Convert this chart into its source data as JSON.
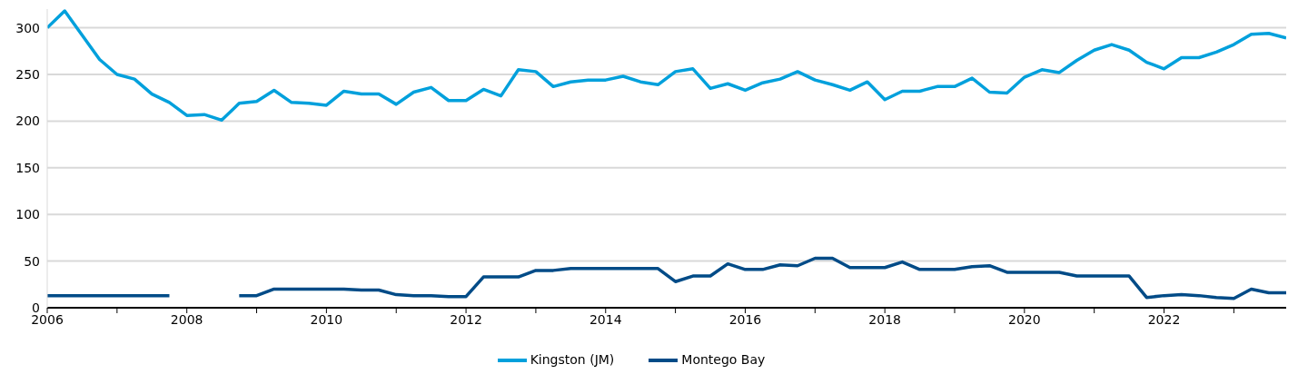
{
  "chart_data": {
    "type": "line",
    "x": [
      2006,
      2006.25,
      2006.5,
      2006.75,
      2007,
      2007.25,
      2007.5,
      2007.75,
      2008,
      2008.25,
      2008.5,
      2008.75,
      2009,
      2009.25,
      2009.5,
      2009.75,
      2010,
      2010.25,
      2010.5,
      2010.75,
      2011,
      2011.25,
      2011.5,
      2011.75,
      2012,
      2012.25,
      2012.5,
      2012.75,
      2013,
      2013.25,
      2013.5,
      2013.75,
      2014,
      2014.25,
      2014.5,
      2014.75,
      2015,
      2015.25,
      2015.5,
      2015.75,
      2016,
      2016.25,
      2016.5,
      2016.75,
      2017,
      2017.25,
      2017.5,
      2017.75,
      2018,
      2018.25,
      2018.5,
      2018.75,
      2019,
      2019.25,
      2019.5,
      2019.75,
      2020,
      2020.25,
      2020.5,
      2020.75,
      2021,
      2021.25,
      2021.5,
      2021.75,
      2022,
      2022.25,
      2022.5,
      2022.75,
      2023,
      2023.25,
      2023.5,
      2023.75
    ],
    "series": [
      {
        "name": "Kingston (JM)",
        "color": "#00a0dc",
        "values": [
          300,
          318,
          292,
          266,
          250,
          245,
          229,
          220,
          206,
          207,
          201,
          219,
          221,
          233,
          220,
          219,
          217,
          232,
          229,
          229,
          218,
          231,
          236,
          222,
          222,
          234,
          227,
          255,
          253,
          237,
          242,
          244,
          244,
          248,
          242,
          239,
          253,
          256,
          235,
          240,
          233,
          241,
          245,
          253,
          244,
          239,
          233,
          242,
          223,
          232,
          232,
          237,
          237,
          246,
          231,
          230,
          247,
          255,
          252,
          265,
          276,
          282,
          276,
          263,
          256,
          268,
          268,
          274,
          282,
          293,
          294,
          289
        ]
      },
      {
        "name": "Montego Bay",
        "color": "#004b87",
        "values": [
          13,
          13,
          13,
          13,
          13,
          13,
          13,
          13,
          null,
          null,
          null,
          13,
          13,
          20,
          20,
          20,
          20,
          20,
          19,
          19,
          14,
          13,
          13,
          12,
          12,
          33,
          33,
          33,
          40,
          40,
          42,
          42,
          42,
          42,
          42,
          42,
          28,
          34,
          34,
          47,
          41,
          41,
          46,
          45,
          53,
          53,
          43,
          43,
          43,
          49,
          41,
          41,
          41,
          44,
          45,
          38,
          38,
          38,
          38,
          34,
          34,
          34,
          34,
          11,
          13,
          14,
          13,
          11,
          10,
          20,
          16,
          16
        ]
      }
    ],
    "xlim": [
      2006,
      2023.75
    ],
    "xticks": [
      2006,
      {
        "value": 2007,
        "label": null
      },
      2008,
      {
        "value": 2009,
        "label": null
      },
      2010,
      {
        "value": 2011,
        "label": null
      },
      2012,
      {
        "value": 2013,
        "label": null
      },
      2014,
      {
        "value": 2015,
        "label": null
      },
      2016,
      {
        "value": 2017,
        "label": null
      },
      2018,
      {
        "value": 2019,
        "label": null
      },
      2020,
      {
        "value": 2021,
        "label": null
      },
      2022,
      {
        "value": 2023,
        "label": null
      }
    ],
    "ylim": [
      0,
      320
    ],
    "yticks": [
      0,
      50,
      100,
      150,
      200,
      250,
      300
    ],
    "grid": "y",
    "legend": "bottom"
  }
}
